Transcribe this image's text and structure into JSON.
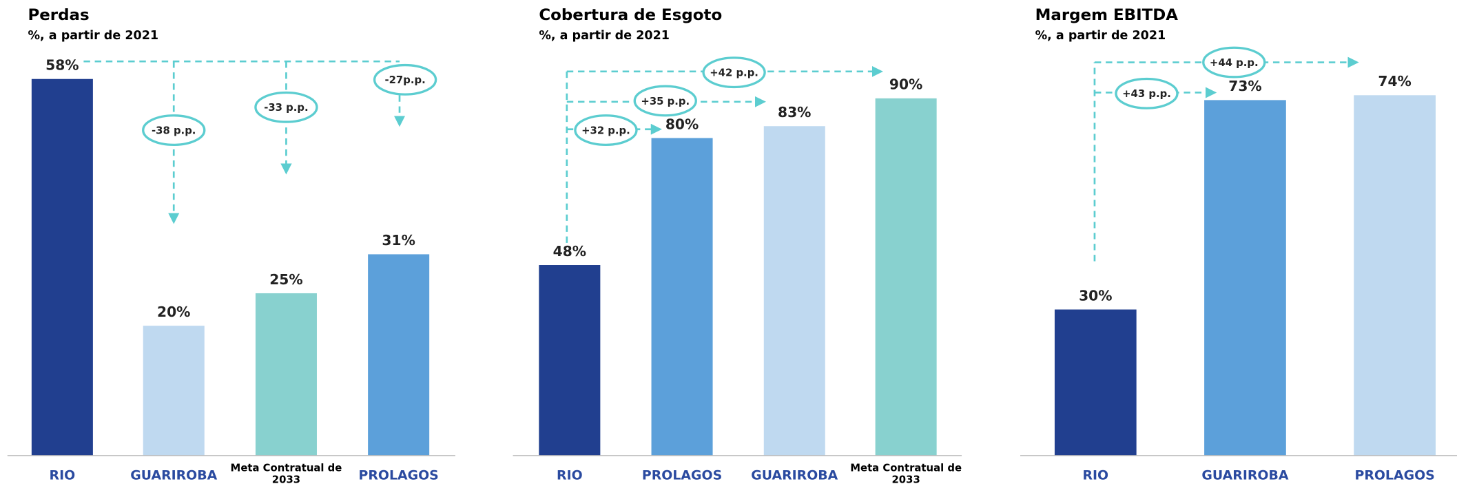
{
  "chart_data": [
    {
      "type": "bar",
      "title": "Perdas",
      "subtitle": "%, a partir de 2021",
      "categories": [
        "RIO",
        "GUARIROBA",
        "Meta Contratual de 2033",
        "PROLAGOS"
      ],
      "values": [
        58,
        20,
        25,
        31
      ],
      "value_labels": [
        "58%",
        "20%",
        "25%",
        "31%"
      ],
      "colors": [
        "#213f8f",
        "#bfd9f0",
        "#88d1cf",
        "#5ca0da"
      ],
      "ylim": [
        0,
        60
      ],
      "annotations": [
        "-38 p.p.",
        "-33 p.p.",
        "-27p.p."
      ]
    },
    {
      "type": "bar",
      "title": "Cobertura de Esgoto",
      "subtitle": "%, a partir de 2021",
      "categories": [
        "RIO",
        "PROLAGOS",
        "GUARIROBA",
        "Meta Contratual de 2033"
      ],
      "values": [
        48,
        80,
        83,
        90
      ],
      "value_labels": [
        "48%",
        "80%",
        "83%",
        "90%"
      ],
      "colors": [
        "#213f8f",
        "#5ca0da",
        "#bfd9f0",
        "#88d1cf"
      ],
      "ylim": [
        0,
        100
      ],
      "annotations": [
        "+42 p.p.",
        "+35 p.p.",
        "+32 p.p."
      ]
    },
    {
      "type": "bar",
      "title": "Margem EBITDA",
      "subtitle": "%, a partir de 2021",
      "categories": [
        "RIO",
        "GUARIROBA",
        "PROLAGOS"
      ],
      "values": [
        30,
        73,
        74
      ],
      "value_labels": [
        "30%",
        "73%",
        "74%"
      ],
      "colors": [
        "#213f8f",
        "#5ca0da",
        "#bfd9f0"
      ],
      "ylim": [
        0,
        80
      ],
      "annotations": [
        "+44 p.p.",
        "+43 p.p."
      ]
    }
  ]
}
